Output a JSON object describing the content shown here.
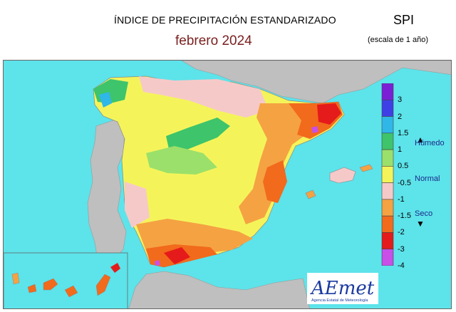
{
  "header": {
    "title": "ÍNDICE DE PRECIPITACIÓN ESTANDARIZADO",
    "period": "febrero  2024",
    "index_name": "SPI",
    "scale_note": "(escala de 1 año)"
  },
  "legend": {
    "ticks": [
      "3",
      "2",
      "1.5",
      "1",
      "0.5",
      "-0.5",
      "-1",
      "-1.5",
      "-2",
      "-3",
      "-4"
    ],
    "classes": [
      {
        "color": "#7a1fd6"
      },
      {
        "color": "#3f3fe6"
      },
      {
        "color": "#2fb7e8"
      },
      {
        "color": "#3ec46a"
      },
      {
        "color": "#9be06a"
      },
      {
        "color": "#f4f45a"
      },
      {
        "color": "#f6c9c9"
      },
      {
        "color": "#f5a243"
      },
      {
        "color": "#f26a1c"
      },
      {
        "color": "#e51a1a"
      },
      {
        "color": "#c84fe8"
      }
    ],
    "wet_label": "Húmedo",
    "normal_label": "Normal",
    "dry_label": "Seco"
  },
  "colors": {
    "sea": "#5de3ea",
    "land_other": "#bfbfbf",
    "region_boundary": "#d8d8d8"
  },
  "logo": {
    "brand": "AEmet",
    "caption": "Agencia Estatal de Meteorología"
  }
}
